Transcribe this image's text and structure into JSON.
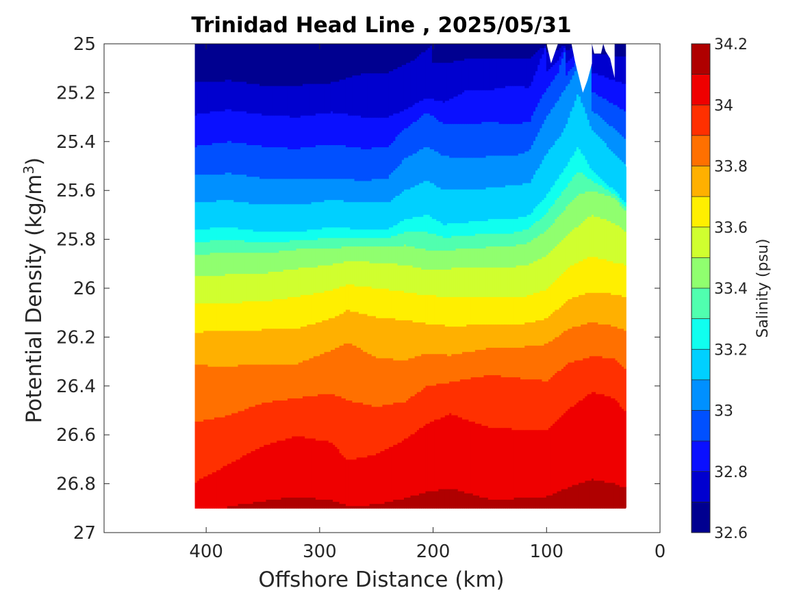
{
  "chart_data": {
    "type": "heatmap",
    "subtype": "filled-contour",
    "title": "Trinidad Head Line , 2025/05/31",
    "xlabel": "Offshore Distance (km)",
    "ylabel_main": "Potential Density (kg/m",
    "ylabel_sup": "3",
    "ylabel_close": ")",
    "xlim": [
      490,
      0
    ],
    "x_reversed": true,
    "ylim": [
      25,
      27
    ],
    "y_reversed": true,
    "x_ticks": [
      "400",
      "300",
      "200",
      "100",
      "0"
    ],
    "x_tick_values": [
      400,
      300,
      200,
      100,
      0
    ],
    "y_ticks": [
      "25",
      "25.2",
      "25.4",
      "25.6",
      "25.8",
      "26",
      "26.2",
      "26.4",
      "26.6",
      "26.8",
      "27"
    ],
    "y_tick_values": [
      25,
      25.2,
      25.4,
      25.6,
      25.8,
      26,
      26.2,
      26.4,
      26.6,
      26.8,
      27
    ],
    "data_extent": {
      "x_min": 30,
      "x_max": 410,
      "y_min": 25.0,
      "y_max": 26.9
    },
    "colorbar": {
      "label": "Salinity (psu)",
      "range": [
        32.6,
        34.2
      ],
      "step": 0.1,
      "tick_labels": [
        "34.2",
        "34",
        "33.8",
        "33.6",
        "33.4",
        "33.2",
        "33",
        "32.8",
        "32.6"
      ],
      "tick_values": [
        34.2,
        34.0,
        33.8,
        33.6,
        33.4,
        33.2,
        33.0,
        32.8,
        32.6
      ],
      "levels_colors": [
        "#000090",
        "#0000CF",
        "#0A10FF",
        "#0050FF",
        "#0090FF",
        "#00D0FF",
        "#10FFEF",
        "#50FFAF",
        "#90FF6F",
        "#D0FF2F",
        "#FFEF00",
        "#FFB000",
        "#FF7000",
        "#FF3000",
        "#EF0000",
        "#AF0000"
      ]
    },
    "isohalines": [
      {
        "level": 32.7,
        "points": [
          [
            410,
            25.16
          ],
          [
            380,
            25.15
          ],
          [
            350,
            25.17
          ],
          [
            320,
            25.17
          ],
          [
            290,
            25.16
          ],
          [
            260,
            25.12
          ],
          [
            240,
            25.12
          ],
          [
            215,
            25.06
          ],
          [
            200,
            25.0
          ]
        ]
      },
      {
        "level": 32.8,
        "points": [
          [
            410,
            25.29
          ],
          [
            380,
            25.27
          ],
          [
            350,
            25.29
          ],
          [
            320,
            25.3
          ],
          [
            290,
            25.28
          ],
          [
            260,
            25.3
          ],
          [
            240,
            25.3
          ],
          [
            225,
            25.27
          ],
          [
            205,
            25.22
          ],
          [
            190,
            25.24
          ],
          [
            170,
            25.19
          ],
          [
            150,
            25.19
          ],
          [
            130,
            25.17
          ],
          [
            115,
            25.18
          ],
          [
            108,
            25.1
          ],
          [
            100,
            25.0
          ]
        ]
      },
      {
        "level": 32.9,
        "points": [
          [
            410,
            25.42
          ],
          [
            380,
            25.4
          ],
          [
            350,
            25.42
          ],
          [
            320,
            25.43
          ],
          [
            290,
            25.41
          ],
          [
            260,
            25.43
          ],
          [
            240,
            25.42
          ],
          [
            225,
            25.35
          ],
          [
            205,
            25.28
          ],
          [
            190,
            25.33
          ],
          [
            170,
            25.33
          ],
          [
            150,
            25.32
          ],
          [
            130,
            25.33
          ],
          [
            115,
            25.32
          ],
          [
            105,
            25.22
          ],
          [
            90,
            25.12
          ],
          [
            82,
            25.0
          ]
        ]
      },
      {
        "level": 33.0,
        "points": [
          [
            410,
            25.54
          ],
          [
            380,
            25.53
          ],
          [
            350,
            25.55
          ],
          [
            320,
            25.55
          ],
          [
            290,
            25.55
          ],
          [
            260,
            25.56
          ],
          [
            240,
            25.55
          ],
          [
            225,
            25.47
          ],
          [
            205,
            25.42
          ],
          [
            190,
            25.46
          ],
          [
            170,
            25.47
          ],
          [
            150,
            25.46
          ],
          [
            130,
            25.46
          ],
          [
            115,
            25.44
          ],
          [
            100,
            25.3
          ],
          [
            80,
            25.16
          ],
          [
            65,
            25.03
          ],
          [
            60,
            25.0
          ]
        ]
      },
      {
        "level": 33.1,
        "points": [
          [
            410,
            25.65
          ],
          [
            380,
            25.64
          ],
          [
            350,
            25.66
          ],
          [
            320,
            25.66
          ],
          [
            290,
            25.64
          ],
          [
            260,
            25.65
          ],
          [
            240,
            25.65
          ],
          [
            225,
            25.6
          ],
          [
            205,
            25.56
          ],
          [
            190,
            25.6
          ],
          [
            170,
            25.6
          ],
          [
            150,
            25.59
          ],
          [
            130,
            25.58
          ],
          [
            115,
            25.57
          ],
          [
            100,
            25.45
          ],
          [
            85,
            25.36
          ],
          [
            72,
            25.2
          ],
          [
            60,
            25.35
          ],
          [
            40,
            25.45
          ],
          [
            30,
            25.5
          ]
        ]
      },
      {
        "level": 33.2,
        "points": [
          [
            410,
            25.76
          ],
          [
            380,
            25.75
          ],
          [
            350,
            25.77
          ],
          [
            320,
            25.77
          ],
          [
            290,
            25.75
          ],
          [
            260,
            25.76
          ],
          [
            240,
            25.76
          ],
          [
            225,
            25.72
          ],
          [
            205,
            25.7
          ],
          [
            190,
            25.74
          ],
          [
            170,
            25.73
          ],
          [
            150,
            25.72
          ],
          [
            130,
            25.72
          ],
          [
            115,
            25.7
          ],
          [
            100,
            25.62
          ],
          [
            85,
            25.52
          ],
          [
            72,
            25.42
          ],
          [
            60,
            25.52
          ],
          [
            40,
            25.6
          ],
          [
            30,
            25.65
          ]
        ]
      }
    ]
  }
}
